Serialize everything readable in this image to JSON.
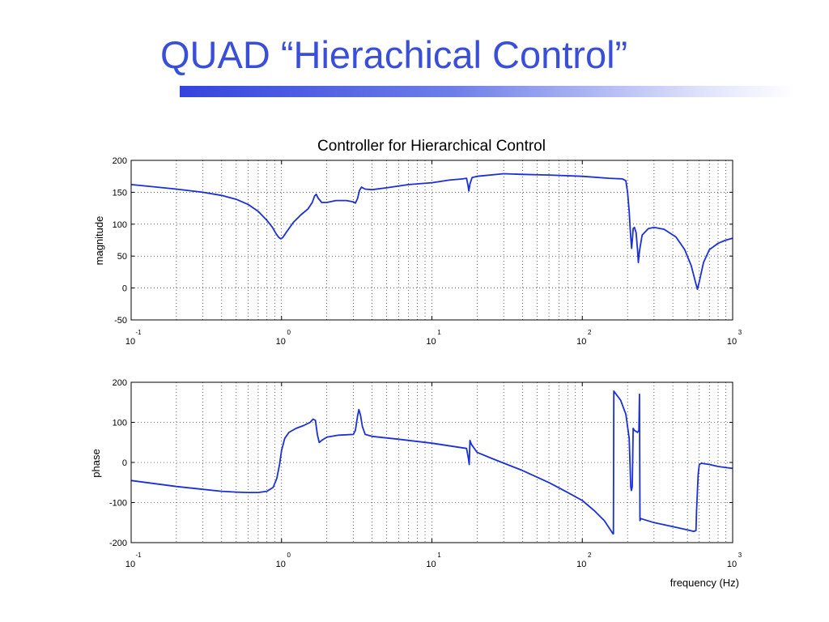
{
  "slide": {
    "title": "QUAD “Hierachical Control”",
    "accent_color": "#3a4fd9"
  },
  "chart_data": [
    {
      "type": "line",
      "title": "Controller for Hierarchical Control",
      "xlabel": "",
      "ylabel": "magnitude",
      "xscale": "log",
      "xlim": [
        0.1,
        1000
      ],
      "ylim": [
        -50,
        200
      ],
      "yticks": [
        "200",
        "150",
        "100",
        "50",
        "0",
        "-50"
      ],
      "xtick_base": "10",
      "xtick_exponents": [
        "-1",
        "0",
        "1",
        "2",
        "3"
      ],
      "grid": true,
      "line_color": "#1a2fd8",
      "series": [
        {
          "points": [
            [
              0.1,
              162
            ],
            [
              0.15,
              158
            ],
            [
              0.2,
              155
            ],
            [
              0.3,
              150
            ],
            [
              0.4,
              145
            ],
            [
              0.5,
              139
            ],
            [
              0.6,
              131
            ],
            [
              0.7,
              120
            ],
            [
              0.8,
              106
            ],
            [
              0.87,
              95
            ],
            [
              0.92,
              85
            ],
            [
              0.96,
              79
            ],
            [
              0.99,
              77
            ],
            [
              1.02,
              79
            ],
            [
              1.08,
              88
            ],
            [
              1.2,
              103
            ],
            [
              1.35,
              115
            ],
            [
              1.5,
              124
            ],
            [
              1.6,
              134
            ],
            [
              1.66,
              144
            ],
            [
              1.7,
              147
            ],
            [
              1.75,
              141
            ],
            [
              1.85,
              134
            ],
            [
              2.0,
              134
            ],
            [
              2.3,
              137
            ],
            [
              2.7,
              137
            ],
            [
              3.0,
              135
            ],
            [
              3.1,
              133
            ],
            [
              3.2,
              140
            ],
            [
              3.3,
              153
            ],
            [
              3.4,
              158
            ],
            [
              3.6,
              155
            ],
            [
              4.0,
              154
            ],
            [
              5,
              157
            ],
            [
              7,
              162
            ],
            [
              10,
              165
            ],
            [
              13,
              169
            ],
            [
              16,
              171
            ],
            [
              17,
              172
            ],
            [
              17.4,
              160
            ],
            [
              17.6,
              152
            ],
            [
              17.9,
              163
            ],
            [
              18.5,
              173
            ],
            [
              20,
              175
            ],
            [
              30,
              179
            ],
            [
              40,
              178
            ],
            [
              60,
              177
            ],
            [
              100,
              175
            ],
            [
              150,
              172
            ],
            [
              185,
              171
            ],
            [
              195,
              168
            ],
            [
              200,
              150
            ],
            [
              205,
              120
            ],
            [
              208,
              95
            ],
            [
              210,
              80
            ],
            [
              213,
              62
            ],
            [
              216,
              80
            ],
            [
              218,
              93
            ],
            [
              222,
              95
            ],
            [
              228,
              87
            ],
            [
              233,
              60
            ],
            [
              236,
              40
            ],
            [
              240,
              58
            ],
            [
              250,
              83
            ],
            [
              275,
              93
            ],
            [
              300,
              95
            ],
            [
              350,
              92
            ],
            [
              420,
              80
            ],
            [
              480,
              60
            ],
            [
              530,
              35
            ],
            [
              565,
              10
            ],
            [
              583,
              -2
            ],
            [
              600,
              10
            ],
            [
              640,
              40
            ],
            [
              700,
              60
            ],
            [
              800,
              70
            ],
            [
              900,
              75
            ],
            [
              1000,
              78
            ]
          ]
        }
      ]
    },
    {
      "type": "line",
      "title": "",
      "xlabel": "frequency (Hz)",
      "ylabel": "phase",
      "xscale": "log",
      "xlim": [
        0.1,
        1000
      ],
      "ylim": [
        -200,
        200
      ],
      "yticks": [
        "200",
        "100",
        "0",
        "-100",
        "-200"
      ],
      "xtick_base": "10",
      "xtick_exponents": [
        "-1",
        "0",
        "1",
        "2",
        "3"
      ],
      "grid": true,
      "line_color": "#1a2fd8",
      "series": [
        {
          "points": [
            [
              0.1,
              -45
            ],
            [
              0.2,
              -60
            ],
            [
              0.3,
              -67
            ],
            [
              0.4,
              -72
            ],
            [
              0.5,
              -74
            ],
            [
              0.6,
              -75
            ],
            [
              0.7,
              -75
            ],
            [
              0.8,
              -72
            ],
            [
              0.88,
              -62
            ],
            [
              0.93,
              -40
            ],
            [
              0.97,
              -5
            ],
            [
              1.0,
              30
            ],
            [
              1.05,
              60
            ],
            [
              1.12,
              75
            ],
            [
              1.25,
              85
            ],
            [
              1.4,
              92
            ],
            [
              1.55,
              100
            ],
            [
              1.62,
              108
            ],
            [
              1.68,
              105
            ],
            [
              1.73,
              70
            ],
            [
              1.78,
              50
            ],
            [
              1.85,
              55
            ],
            [
              2.0,
              63
            ],
            [
              2.4,
              68
            ],
            [
              3.0,
              70
            ],
            [
              3.1,
              80
            ],
            [
              3.2,
              115
            ],
            [
              3.27,
              132
            ],
            [
              3.35,
              118
            ],
            [
              3.45,
              90
            ],
            [
              3.6,
              70
            ],
            [
              4,
              65
            ],
            [
              6,
              58
            ],
            [
              10,
              48
            ],
            [
              15,
              38
            ],
            [
              17,
              35
            ],
            [
              17.5,
              10
            ],
            [
              17.7,
              -5
            ],
            [
              17.9,
              55
            ],
            [
              18.3,
              45
            ],
            [
              20,
              25
            ],
            [
              25,
              10
            ],
            [
              40,
              -20
            ],
            [
              60,
              -50
            ],
            [
              80,
              -75
            ],
            [
              100,
              -95
            ],
            [
              120,
              -120
            ],
            [
              140,
              -145
            ],
            [
              155,
              -170
            ],
            [
              160,
              -178
            ],
            [
              161,
              -178
            ],
            [
              162,
              178
            ],
            [
              180,
              155
            ],
            [
              195,
              120
            ],
            [
              205,
              60
            ],
            [
              210,
              -60
            ],
            [
              212,
              -70
            ],
            [
              215,
              -60
            ],
            [
              218,
              85
            ],
            [
              222,
              80
            ],
            [
              233,
              75
            ],
            [
              238,
              80
            ],
            [
              240,
              170
            ],
            [
              242,
              -145
            ],
            [
              245,
              -140
            ],
            [
              300,
              -150
            ],
            [
              400,
              -160
            ],
            [
              500,
              -168
            ],
            [
              550,
              -172
            ],
            [
              570,
              -170
            ],
            [
              575,
              -120
            ],
            [
              590,
              -30
            ],
            [
              600,
              -5
            ],
            [
              620,
              -2
            ],
            [
              700,
              -5
            ],
            [
              800,
              -10
            ],
            [
              1000,
              -15
            ]
          ]
        }
      ]
    }
  ]
}
